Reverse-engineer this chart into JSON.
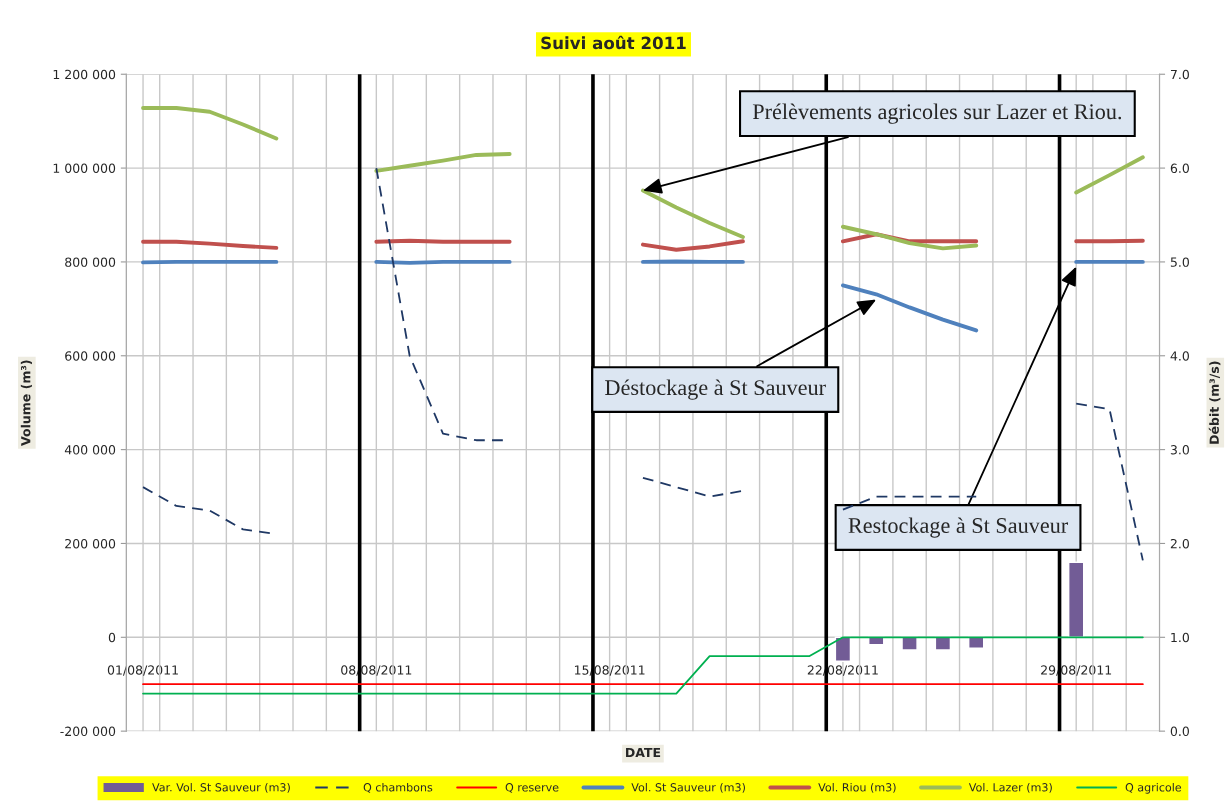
{
  "chart_data": {
    "type": "line",
    "title": "Suivi août 2011",
    "xlabel": "DATE",
    "ylabel": "Volume (m³)",
    "y2label": "Débit (m³/s)",
    "x": [
      "2011-08-01",
      "2011-08-02",
      "2011-08-03",
      "2011-08-04",
      "2011-08-05",
      "2011-08-06",
      "2011-08-07",
      "2011-08-08",
      "2011-08-09",
      "2011-08-10",
      "2011-08-11",
      "2011-08-12",
      "2011-08-13",
      "2011-08-14",
      "2011-08-15",
      "2011-08-16",
      "2011-08-17",
      "2011-08-18",
      "2011-08-19",
      "2011-08-20",
      "2011-08-21",
      "2011-08-22",
      "2011-08-23",
      "2011-08-24",
      "2011-08-25",
      "2011-08-26",
      "2011-08-27",
      "2011-08-28",
      "2011-08-29",
      "2011-08-30",
      "2011-08-31"
    ],
    "series": [
      {
        "name": "Var. Vol. St Sauveur (m3)",
        "type": "bar",
        "color": "#725c96",
        "values": [
          null,
          null,
          null,
          null,
          null,
          null,
          null,
          null,
          null,
          null,
          null,
          null,
          null,
          null,
          null,
          null,
          null,
          null,
          null,
          null,
          null,
          -51000,
          -16000,
          -27000,
          -27000,
          -23000,
          null,
          null,
          160000,
          null,
          null
        ]
      },
      {
        "name": "Q chambons",
        "color": "#1f3864",
        "axis": "y2",
        "line_style": "dashed",
        "values": [
          2.6,
          2.4,
          2.35,
          2.15,
          2.1,
          null,
          null,
          6.0,
          4.0,
          3.17,
          3.1,
          3.1,
          null,
          null,
          null,
          2.7,
          2.6,
          2.5,
          2.56,
          null,
          null,
          2.36,
          2.5,
          2.5,
          2.5,
          2.5,
          null,
          null,
          3.49,
          3.43,
          1.82
        ]
      },
      {
        "name": "Q reserve",
        "color": "#ff0000",
        "axis": "y2",
        "values": [
          0.5,
          0.5,
          0.5,
          0.5,
          0.5,
          0.5,
          0.5,
          0.5,
          0.5,
          0.5,
          0.5,
          0.5,
          0.5,
          0.5,
          0.5,
          0.5,
          0.5,
          0.5,
          0.5,
          0.5,
          0.5,
          0.5,
          0.5,
          0.5,
          0.5,
          0.5,
          0.5,
          0.5,
          0.5,
          0.5,
          0.5
        ]
      },
      {
        "name": "Vol. St Sauveur (m3)",
        "color": "#4f81bd",
        "values": [
          799000,
          800000,
          800000,
          800000,
          800000,
          null,
          null,
          800000,
          798000,
          800000,
          800000,
          800000,
          null,
          null,
          null,
          800000,
          801000,
          800000,
          800000,
          null,
          null,
          750000,
          731000,
          703000,
          677000,
          654000,
          null,
          null,
          800000,
          800000,
          800000
        ]
      },
      {
        "name": "Vol. Riou (m3)",
        "color": "#c0504d",
        "values": [
          843000,
          843000,
          839000,
          834000,
          830000,
          null,
          null,
          843000,
          845000,
          843000,
          843000,
          843000,
          null,
          null,
          null,
          837000,
          826000,
          833000,
          844000,
          null,
          null,
          844000,
          859000,
          844000,
          844000,
          844000,
          null,
          null,
          844000,
          844000,
          845000
        ]
      },
      {
        "name": "Vol. Lazer (m3)",
        "color": "#9bbb59",
        "values": [
          1128000,
          1128000,
          1120000,
          1093000,
          1063000,
          null,
          null,
          994000,
          1005000,
          1016000,
          1028000,
          1030000,
          null,
          null,
          null,
          952000,
          916000,
          883000,
          853000,
          null,
          null,
          875000,
          859000,
          840000,
          829000,
          835000,
          null,
          null,
          948000,
          985000,
          1023000
        ]
      },
      {
        "name": "Q agricole",
        "color": "#00b050",
        "axis": "y2",
        "values": [
          0.4,
          0.4,
          0.4,
          0.4,
          0.4,
          0.4,
          0.4,
          0.4,
          0.4,
          0.4,
          0.4,
          0.4,
          0.4,
          0.4,
          0.4,
          0.4,
          0.4,
          0.8,
          0.8,
          0.8,
          0.8,
          1.0,
          1.0,
          1.0,
          1.0,
          1.0,
          1.0,
          1.0,
          1.0,
          1.0,
          1.0
        ]
      }
    ],
    "xlim": [
      "2011-07-31T12:00",
      "2011-08-31T12:00"
    ],
    "xticks": [
      {
        "value": "2011-08-01",
        "label": "01/08/2011"
      },
      {
        "value": "2011-08-08",
        "label": "08/08/2011"
      },
      {
        "value": "2011-08-15",
        "label": "15/08/2011"
      },
      {
        "value": "2011-08-22",
        "label": "22/08/2011"
      },
      {
        "value": "2011-08-29",
        "label": "29/08/2011"
      },
      {
        "value": "2011-08-01T12:00",
        "label": null
      },
      {
        "value": "2011-08-02T12:00",
        "label": null
      },
      {
        "value": "2011-08-03T12:00",
        "label": null
      },
      {
        "value": "2011-08-04T12:00",
        "label": null
      },
      {
        "value": "2011-08-05T12:00",
        "label": null
      },
      {
        "value": "2011-08-06T12:00",
        "label": null
      },
      {
        "value": "2011-08-08T12:00",
        "label": null
      },
      {
        "value": "2011-08-09T12:00",
        "label": null
      },
      {
        "value": "2011-08-10T12:00",
        "label": null
      },
      {
        "value": "2011-08-11T12:00",
        "label": null
      },
      {
        "value": "2011-08-12T12:00",
        "label": null
      },
      {
        "value": "2011-08-13T12:00",
        "label": null
      },
      {
        "value": "2011-08-15T12:00",
        "label": null
      },
      {
        "value": "2011-08-16T12:00",
        "label": null
      },
      {
        "value": "2011-08-17T12:00",
        "label": null
      },
      {
        "value": "2011-08-18T12:00",
        "label": null
      },
      {
        "value": "2011-08-19T12:00",
        "label": null
      },
      {
        "value": "2011-08-20T12:00",
        "label": null
      },
      {
        "value": "2011-08-22T12:00",
        "label": null
      },
      {
        "value": "2011-08-23T12:00",
        "label": null
      },
      {
        "value": "2011-08-24T12:00",
        "label": null
      },
      {
        "value": "2011-08-25T12:00",
        "label": null
      },
      {
        "value": "2011-08-26T12:00",
        "label": null
      },
      {
        "value": "2011-08-27T12:00",
        "label": null
      },
      {
        "value": "2011-08-29T12:00",
        "label": null
      },
      {
        "value": "2011-08-30T12:00",
        "label": null
      }
    ],
    "ylim": [
      -200000,
      1200000
    ],
    "yticks": [
      {
        "value": -200000,
        "label": "-200 000"
      },
      0,
      {
        "value": 200000,
        "label": "200 000"
      },
      {
        "value": 400000,
        "label": "400 000"
      },
      {
        "value": 600000,
        "label": "600 000"
      },
      {
        "value": 800000,
        "label": "800 000"
      },
      {
        "value": 1000000,
        "label": "1 000 000"
      },
      {
        "value": 1200000,
        "label": "1 200 000"
      }
    ],
    "y2lim": [
      0,
      7
    ],
    "y2ticks": [
      {
        "value": 0,
        "label": "0.0"
      },
      {
        "value": 1,
        "label": "1.0"
      },
      {
        "value": 2,
        "label": "2.0"
      },
      {
        "value": 3,
        "label": "3.0"
      },
      {
        "value": 4,
        "label": "4.0"
      },
      {
        "value": 5,
        "label": "5.0"
      },
      {
        "value": 6,
        "label": "6.0"
      },
      {
        "value": 7,
        "label": "7.0"
      }
    ],
    "ref_lines": [
      {
        "axis": "x",
        "value": "2011-08-07T12:00",
        "color": "#000000"
      },
      {
        "axis": "x",
        "value": "2011-08-14T12:00",
        "color": "#000000"
      },
      {
        "axis": "x",
        "value": "2011-08-21T12:00",
        "color": "#000000"
      },
      {
        "axis": "x",
        "value": "2011-08-28T12:00",
        "color": "#000000"
      }
    ],
    "annotations": [
      {
        "text": "Prélèvements agricoles sur Lazer et Riou.",
        "x": "2011-08-16",
        "y": 952000
      },
      {
        "text": "Déstockage à St Sauveur",
        "x": "2011-08-23",
        "y": 720000
      },
      {
        "text": "Restockage à St Sauveur",
        "x": "2011-08-29",
        "y": 790000
      }
    ],
    "grid": true,
    "legend": "bottom",
    "marker": "none"
  }
}
